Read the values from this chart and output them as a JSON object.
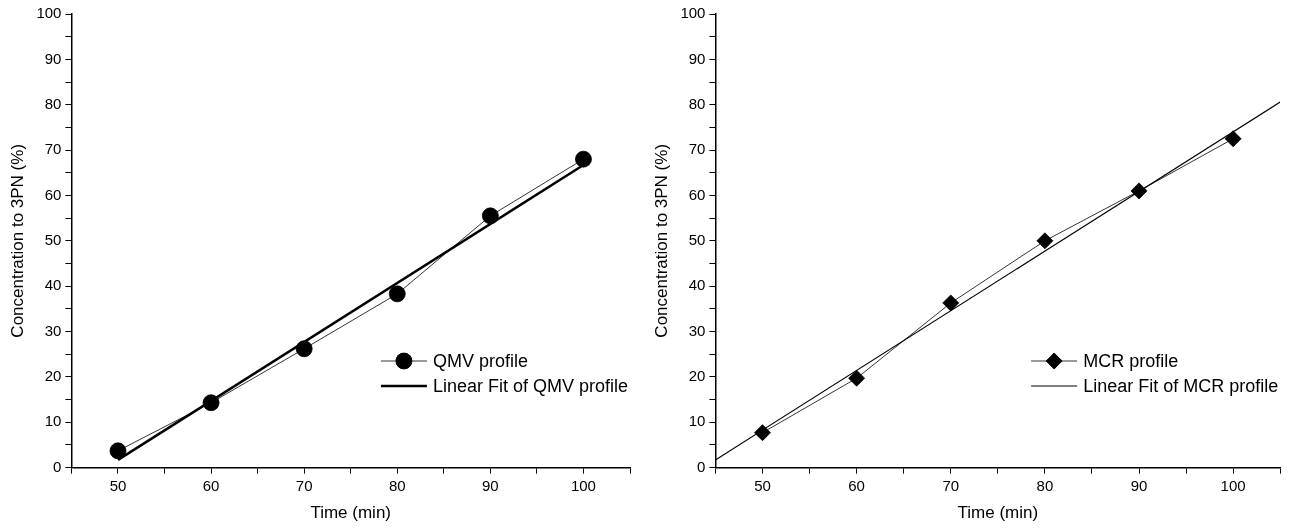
{
  "chart_data": [
    {
      "type": "line",
      "xlabel": "Time (min)",
      "ylabel": "Concentration to 3PN (%)",
      "xlim": [
        45,
        105
      ],
      "ylim": [
        0,
        100
      ],
      "xticks": [
        {
          "value": 45,
          "label": null
        },
        50,
        {
          "value": 55,
          "label": null
        },
        60,
        {
          "value": 65,
          "label": null
        },
        70,
        {
          "value": 75,
          "label": null
        },
        80,
        {
          "value": 85,
          "label": null
        },
        90,
        {
          "value": 95,
          "label": null
        },
        100,
        {
          "value": 105,
          "label": null
        }
      ],
      "yticks": [
        0,
        {
          "value": 5,
          "label": null
        },
        10,
        {
          "value": 15,
          "label": null
        },
        20,
        {
          "value": 25,
          "label": null
        },
        30,
        {
          "value": 35,
          "label": null
        },
        40,
        {
          "value": 45,
          "label": null
        },
        50,
        {
          "value": 55,
          "label": null
        },
        60,
        {
          "value": 65,
          "label": null
        },
        70,
        {
          "value": 75,
          "label": null
        },
        80,
        {
          "value": 85,
          "label": null
        },
        90,
        {
          "value": 95,
          "label": null
        },
        100
      ],
      "legend": "bottom right",
      "grid": false,
      "series": [
        {
          "name": "QMV profile",
          "color": "#000000",
          "marker": "circle",
          "x": [
            50,
            60,
            70,
            80,
            90,
            100
          ],
          "values": [
            3.7,
            14.3,
            26.2,
            38.3,
            55.5,
            68.0
          ]
        },
        {
          "name": "Linear Fit of QMV profile",
          "color": "#000000",
          "marker": "none",
          "x": [
            50,
            100
          ],
          "values": [
            1.7,
            66.7
          ]
        }
      ]
    },
    {
      "type": "line",
      "xlabel": "Time (min)",
      "ylabel": "Concentration to 3PN (%)",
      "xlim": [
        45,
        105
      ],
      "ylim": [
        0,
        100
      ],
      "xticks": [
        {
          "value": 45,
          "label": null
        },
        50,
        {
          "value": 55,
          "label": null
        },
        60,
        {
          "value": 65,
          "label": null
        },
        70,
        {
          "value": 75,
          "label": null
        },
        80,
        {
          "value": 85,
          "label": null
        },
        90,
        {
          "value": 95,
          "label": null
        },
        100,
        {
          "value": 105,
          "label": null
        }
      ],
      "yticks": [
        0,
        {
          "value": 5,
          "label": null
        },
        10,
        {
          "value": 15,
          "label": null
        },
        20,
        {
          "value": 25,
          "label": null
        },
        30,
        {
          "value": 35,
          "label": null
        },
        40,
        {
          "value": 45,
          "label": null
        },
        50,
        {
          "value": 55,
          "label": null
        },
        60,
        {
          "value": 65,
          "label": null
        },
        70,
        {
          "value": 75,
          "label": null
        },
        80,
        {
          "value": 85,
          "label": null
        },
        90,
        {
          "value": 95,
          "label": null
        },
        100
      ],
      "legend": "bottom right",
      "grid": false,
      "series": [
        {
          "name": "MCR profile",
          "color": "#000000",
          "marker": "diamond",
          "x": [
            50,
            60,
            70,
            80,
            90,
            100
          ],
          "values": [
            7.7,
            19.7,
            36.3,
            50.0,
            61.0,
            72.5
          ]
        },
        {
          "name": "Linear Fit of MCR profile",
          "color": "#000000",
          "marker": "none",
          "x": [
            45,
            105
          ],
          "values": [
            1.7,
            80.6
          ]
        }
      ]
    }
  ]
}
